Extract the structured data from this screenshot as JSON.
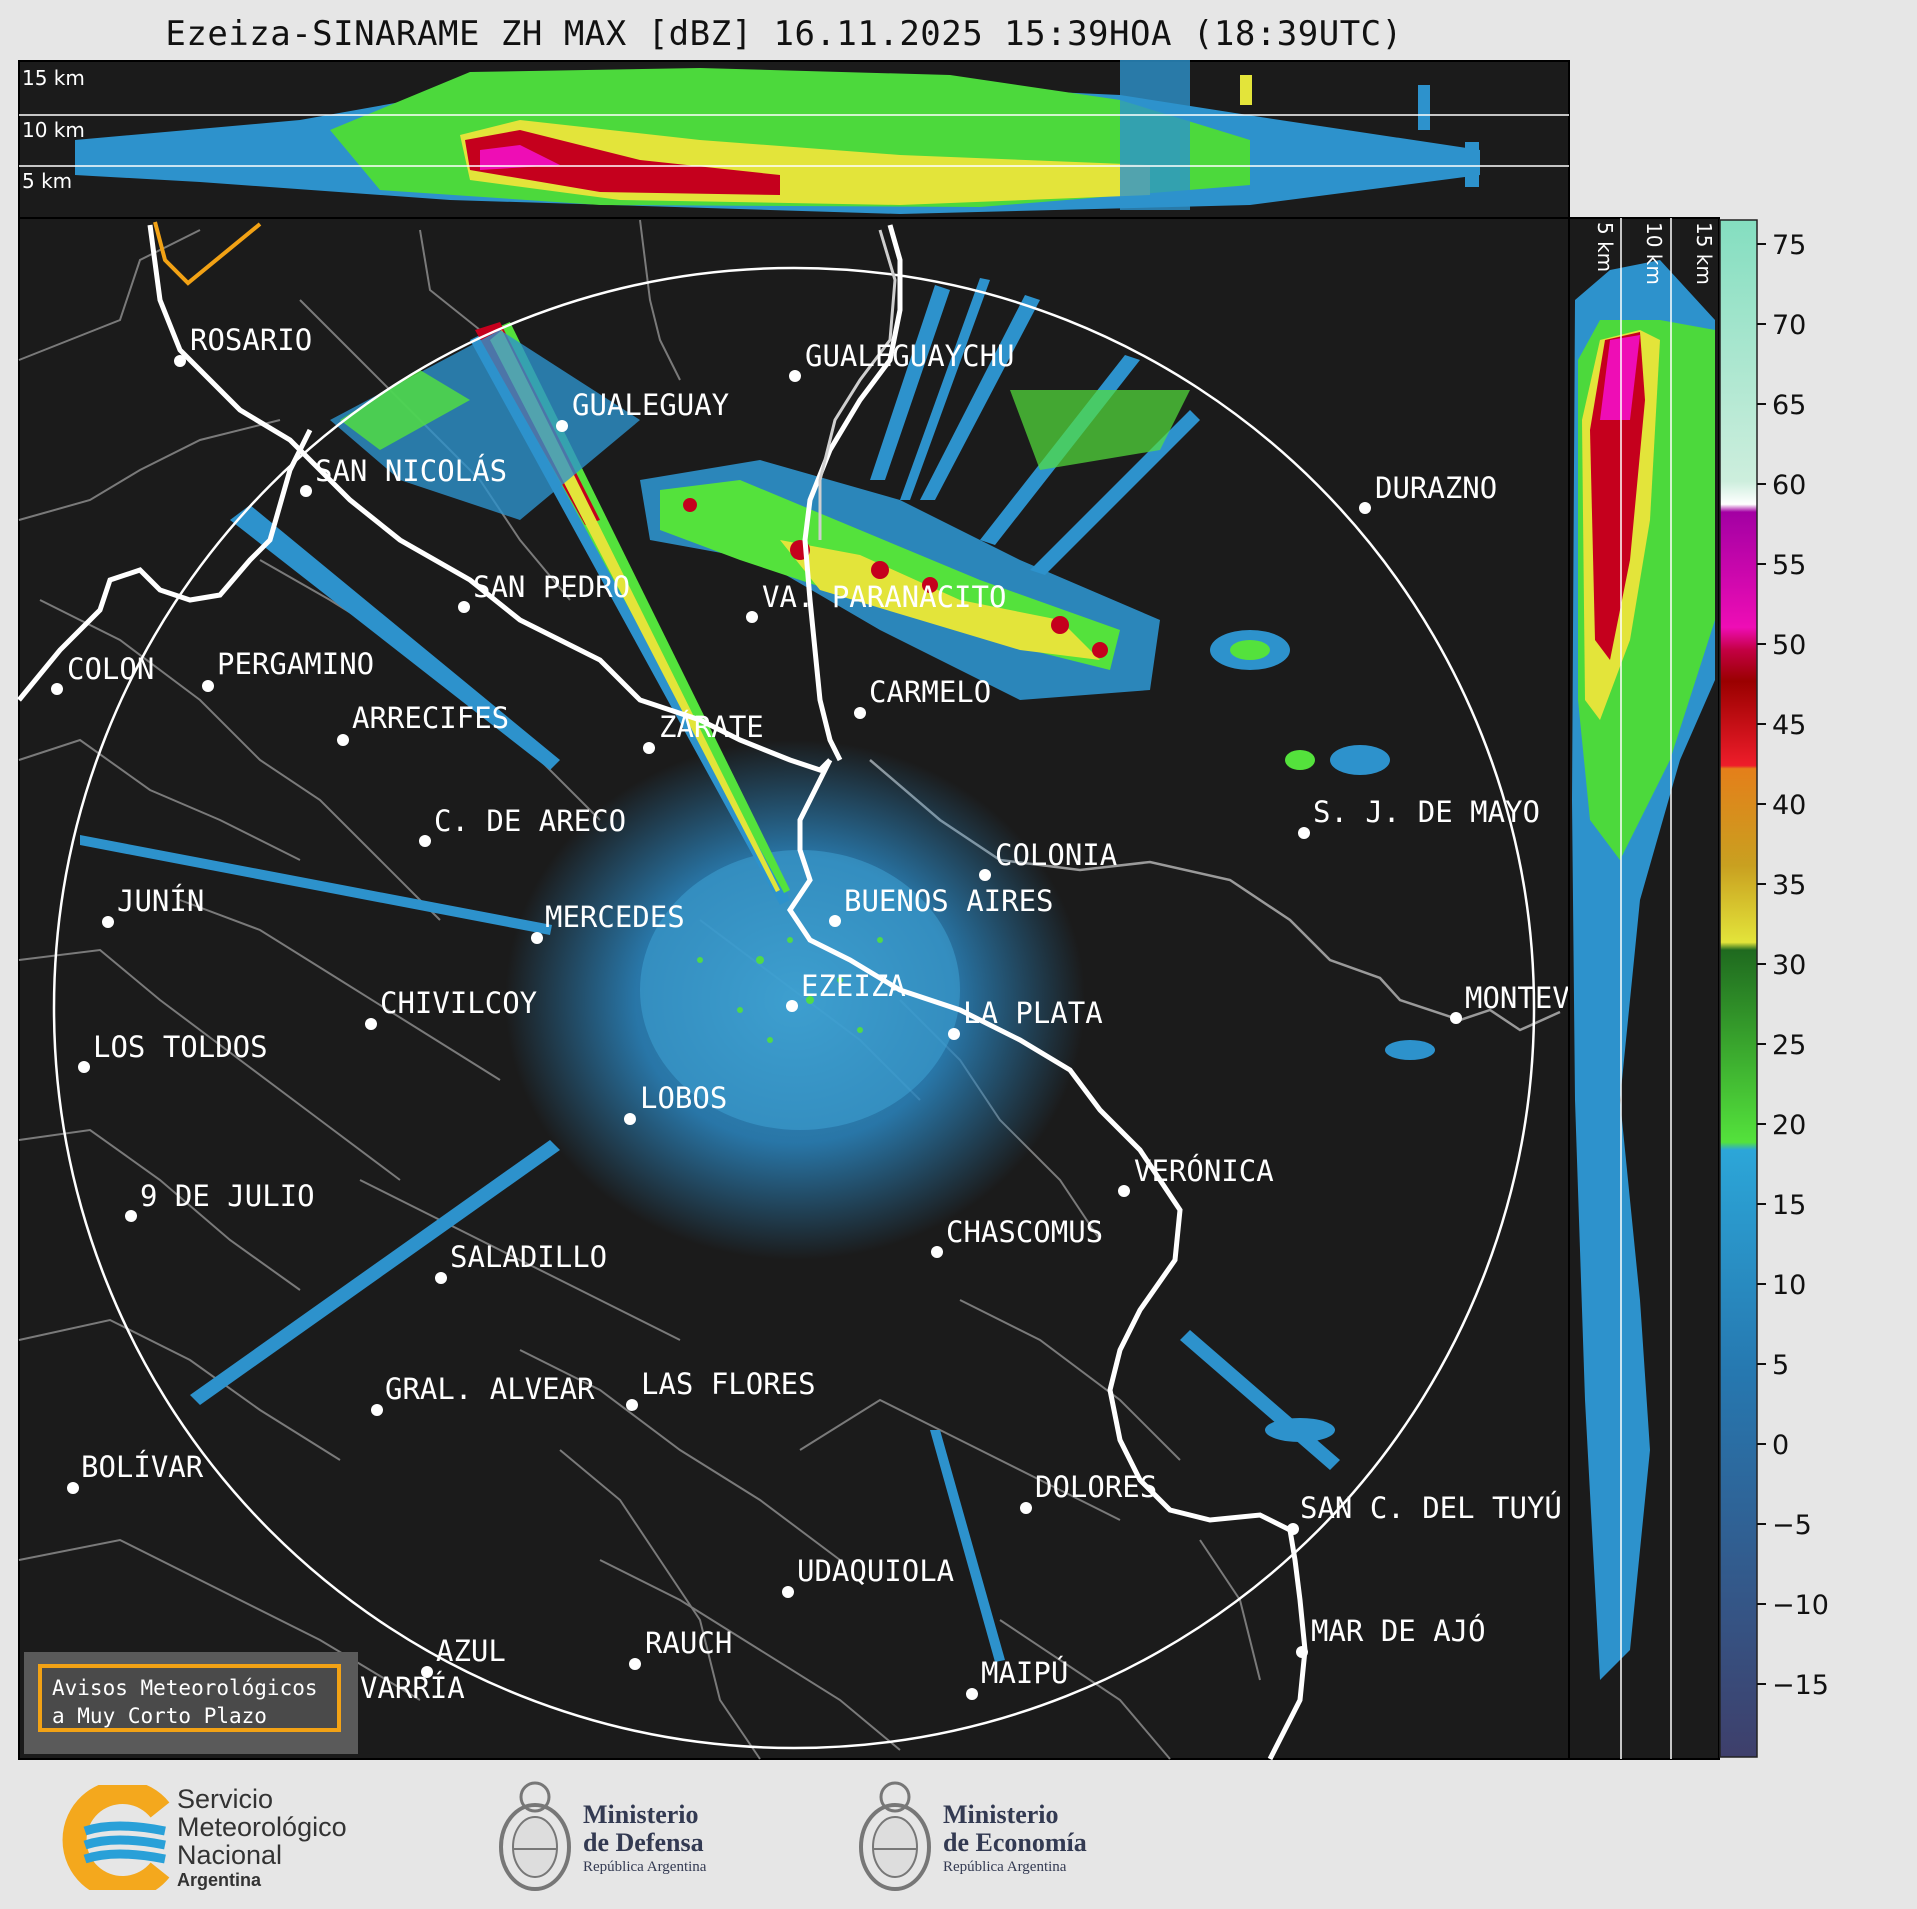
{
  "title": "Ezeiza-SINARAME ZH MAX [dBZ] 16.11.2025 15:39HOA (18:39UTC)",
  "top_panel": {
    "altitudes": [
      "15 km",
      "10 km",
      "5 km"
    ]
  },
  "side_panel": {
    "altitudes": [
      "5 km",
      "10 km",
      "15 km"
    ]
  },
  "colorbar": {
    "ticks": [
      "75",
      "70",
      "65",
      "60",
      "55",
      "50",
      "45",
      "40",
      "35",
      "30",
      "25",
      "20",
      "15",
      "10",
      "5",
      "0",
      "−5",
      "−10",
      "−15"
    ],
    "unit": "dBZ"
  },
  "cities": [
    {
      "name": "ROSARIO"
    },
    {
      "name": "GUALEGUAYCHU"
    },
    {
      "name": "GUALEGUAY"
    },
    {
      "name": "SAN NICOLÁS"
    },
    {
      "name": "DURAZNO"
    },
    {
      "name": "SAN PEDRO"
    },
    {
      "name": "VA. PARANACITO"
    },
    {
      "name": "COLON"
    },
    {
      "name": "PERGAMINO"
    },
    {
      "name": "CARMELO"
    },
    {
      "name": "ARRECIFES"
    },
    {
      "name": "ZÁRATE"
    },
    {
      "name": "S. J. DE MAYO"
    },
    {
      "name": "C. DE ARECO"
    },
    {
      "name": "COLONIA"
    },
    {
      "name": "JUNÍN"
    },
    {
      "name": "BUENOS AIRES"
    },
    {
      "name": "MERCEDES"
    },
    {
      "name": "MONTEV"
    },
    {
      "name": "CHIVILCOY"
    },
    {
      "name": "EZEIZA"
    },
    {
      "name": "LA PLATA"
    },
    {
      "name": "LOS TOLDOS"
    },
    {
      "name": "LOBOS"
    },
    {
      "name": "VERÓNICA"
    },
    {
      "name": "9 DE JULIO"
    },
    {
      "name": "CHASCOMUS"
    },
    {
      "name": "SALADILLO"
    },
    {
      "name": "GRAL. ALVEAR"
    },
    {
      "name": "LAS FLORES"
    },
    {
      "name": "BOLÍVAR"
    },
    {
      "name": "DOLORES"
    },
    {
      "name": "SAN C. DEL TUYÚ"
    },
    {
      "name": "UDAQUIOLA"
    },
    {
      "name": "MAR DE AJÓ"
    },
    {
      "name": "RAUCH"
    },
    {
      "name": "AZUL"
    },
    {
      "name": "MAIPÚ"
    },
    {
      "name": "VARRÍA"
    }
  ],
  "warning_box": {
    "line1": "Avisos Meteorológicos",
    "line2": "a Muy Corto Plazo",
    "color": "#f2a215"
  },
  "logos": {
    "smn": {
      "line1": "Servicio",
      "line2": "Meteorológico",
      "line3": "Nacional",
      "line4": "Argentina"
    },
    "defensa": {
      "line1": "Ministerio",
      "line2": "de Defensa",
      "line3": "República Argentina"
    },
    "economia": {
      "line1": "Ministerio",
      "line2": "de Economía",
      "line3": "República Argentina"
    }
  },
  "colors": {
    "background": "#1b1b1b",
    "range_ring": "#ffffff",
    "coast": "#ffffff",
    "borders": "#808080"
  }
}
